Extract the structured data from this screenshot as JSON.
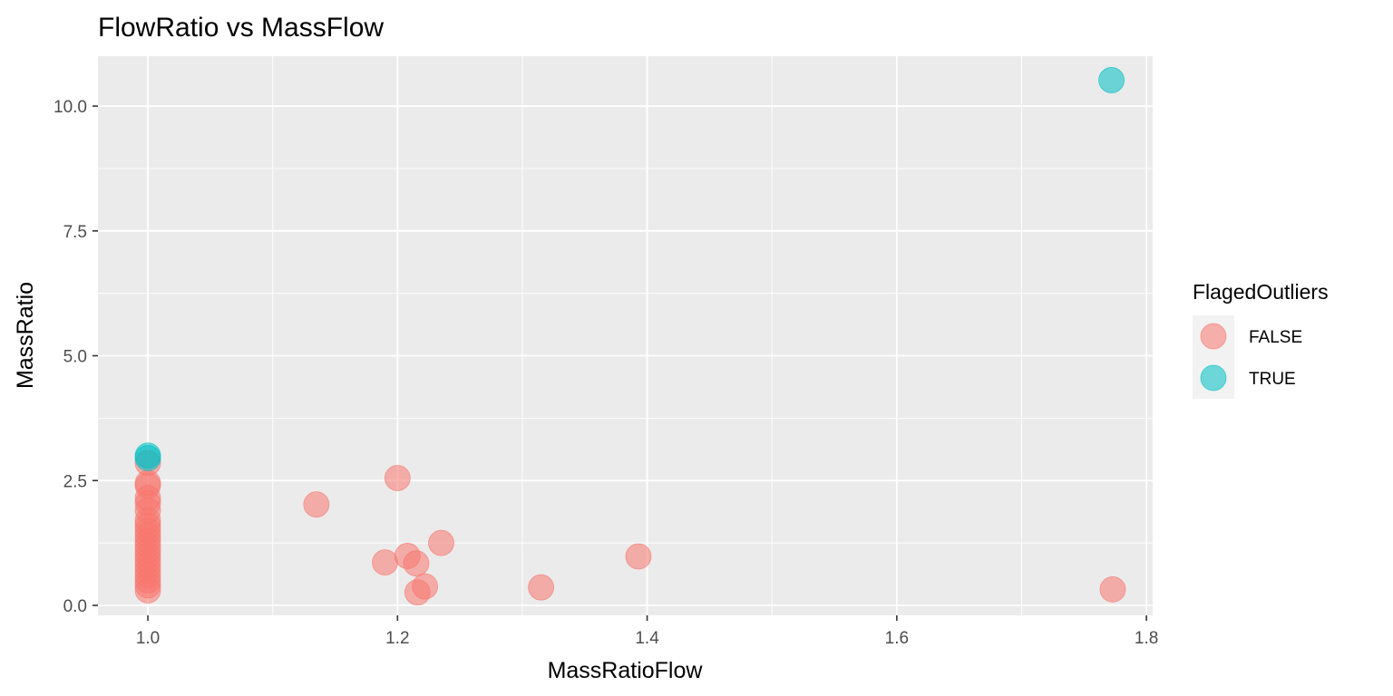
{
  "chart_data": {
    "type": "scatter",
    "title": "FlowRatio vs MassFlow",
    "xlabel": "MassRatioFlow",
    "ylabel": "MassRatio",
    "xlim": [
      0.96,
      1.805
    ],
    "ylim": [
      -0.2,
      11.0
    ],
    "x_ticks": [
      1.0,
      1.2,
      1.4,
      1.6,
      1.8
    ],
    "x_tick_labels": [
      "1.0",
      "1.2",
      "1.4",
      "1.6",
      "1.8"
    ],
    "y_ticks": [
      0.0,
      2.5,
      5.0,
      7.5,
      10.0
    ],
    "y_tick_labels": [
      "0.0",
      "2.5",
      "5.0",
      "7.5",
      "10.0"
    ],
    "grid": true,
    "legend": {
      "title": "FlagedOutliers",
      "position": "right"
    },
    "series": [
      {
        "name": "FALSE",
        "color": "#F8766D",
        "points": [
          [
            1.0,
            0.3
          ],
          [
            1.0,
            0.4
          ],
          [
            1.0,
            0.5
          ],
          [
            1.0,
            0.6
          ],
          [
            1.0,
            0.7
          ],
          [
            1.0,
            0.8
          ],
          [
            1.0,
            0.9
          ],
          [
            1.0,
            1.0
          ],
          [
            1.0,
            1.1
          ],
          [
            1.0,
            1.2
          ],
          [
            1.0,
            1.3
          ],
          [
            1.0,
            1.4
          ],
          [
            1.0,
            1.5
          ],
          [
            1.0,
            1.6
          ],
          [
            1.0,
            1.7
          ],
          [
            1.0,
            1.9
          ],
          [
            1.0,
            2.05
          ],
          [
            1.0,
            2.15
          ],
          [
            1.0,
            2.4
          ],
          [
            1.0,
            2.45
          ],
          [
            1.0,
            2.85
          ],
          [
            1.135,
            2.02
          ],
          [
            1.2,
            2.55
          ],
          [
            1.19,
            0.86
          ],
          [
            1.208,
            0.99
          ],
          [
            1.215,
            0.84
          ],
          [
            1.222,
            0.38
          ],
          [
            1.216,
            0.26
          ],
          [
            1.235,
            1.25
          ],
          [
            1.315,
            0.36
          ],
          [
            1.393,
            0.98
          ],
          [
            1.773,
            0.32
          ]
        ]
      },
      {
        "name": "TRUE",
        "color": "#00BFC4",
        "points": [
          [
            1.0,
            2.95
          ],
          [
            1.0,
            3.0
          ],
          [
            1.772,
            10.52
          ]
        ]
      }
    ]
  }
}
